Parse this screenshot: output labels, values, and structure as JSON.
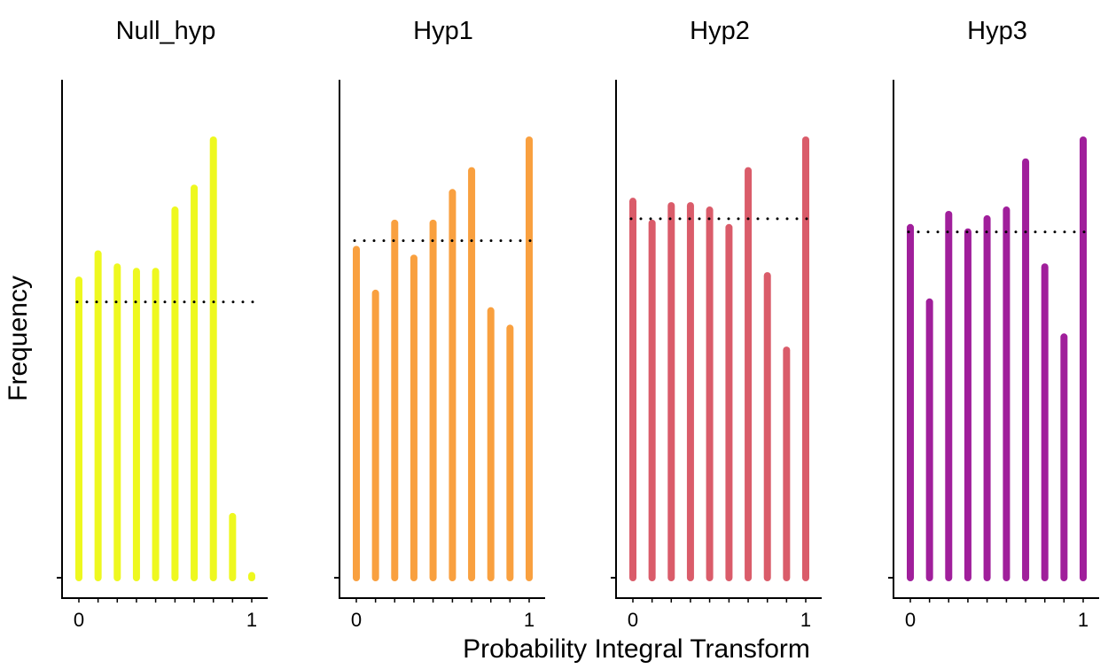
{
  "chart_data": {
    "type": "bar",
    "ylabel": "Frequency",
    "xlabel": "Probability Integral Transform",
    "x_ticks": [
      {
        "value": 0,
        "label": "0"
      },
      {
        "value": 1,
        "label": "1"
      }
    ],
    "x": [
      0,
      0.111,
      0.222,
      0.333,
      0.444,
      0.556,
      0.667,
      0.778,
      0.889,
      1
    ],
    "reference_line": "dotted",
    "panels": [
      {
        "title": "Null_hyp",
        "color": "#EEF81F",
        "values": [
          0.68,
          0.74,
          0.71,
          0.7,
          0.7,
          0.84,
          0.89,
          1.0,
          0.14,
          0.005
        ],
        "reference": 0.63
      },
      {
        "title": "Hyp1",
        "color": "#F9A03F",
        "values": [
          0.75,
          0.65,
          0.81,
          0.73,
          0.81,
          0.88,
          0.93,
          0.61,
          0.57,
          1.0
        ],
        "reference": 0.77
      },
      {
        "title": "Hyp2",
        "color": "#DA5C6A",
        "values": [
          0.86,
          0.81,
          0.85,
          0.85,
          0.84,
          0.8,
          0.93,
          0.69,
          0.52,
          1.0
        ],
        "reference": 0.82
      },
      {
        "title": "Hyp3",
        "color": "#A01F9B",
        "values": [
          0.8,
          0.63,
          0.83,
          0.79,
          0.82,
          0.84,
          0.95,
          0.71,
          0.55,
          1.0
        ],
        "reference": 0.79
      }
    ]
  }
}
